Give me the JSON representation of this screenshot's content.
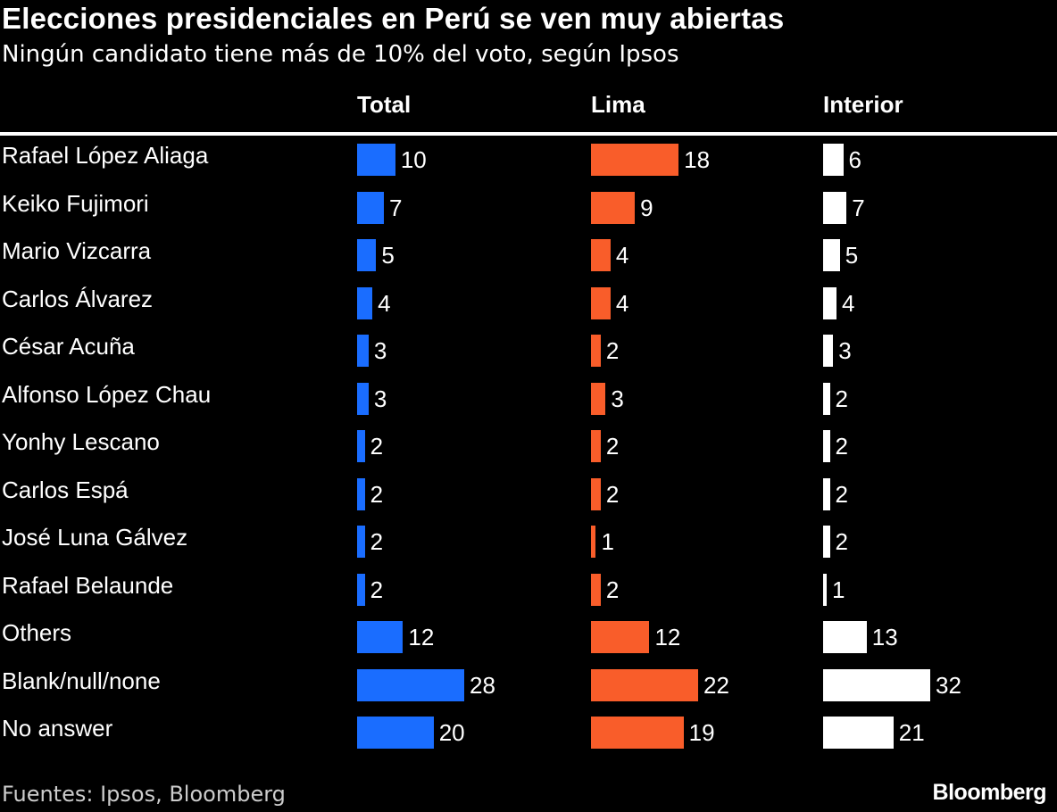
{
  "chart_data": {
    "type": "bar",
    "title": "Elecciones presidenciales en Perú se ven muy abiertas",
    "subtitle": "Ningún candidato tiene más de 10% del voto, según Ipsos",
    "categories": [
      "Rafael López Aliaga",
      "Keiko Fujimori",
      "Mario Vizcarra",
      "Carlos Álvarez",
      "César Acuña",
      "Alfonso López Chau",
      "Yonhy Lescano",
      "Carlos Espá",
      "José Luna Gálvez",
      "Rafael Belaunde",
      "Others",
      "Blank/null/none",
      "No answer"
    ],
    "series": [
      {
        "name": "Total",
        "color": "#1a6dff",
        "values": [
          10,
          7,
          5,
          4,
          3,
          3,
          2,
          2,
          2,
          2,
          12,
          28,
          20
        ]
      },
      {
        "name": "Lima",
        "color": "#f95d2a",
        "values": [
          18,
          9,
          4,
          4,
          2,
          3,
          2,
          2,
          1,
          2,
          12,
          22,
          19
        ]
      },
      {
        "name": "Interior",
        "color": "#ffffff",
        "values": [
          6,
          7,
          5,
          4,
          3,
          2,
          2,
          2,
          2,
          1,
          13,
          32,
          21
        ]
      }
    ],
    "orientation": "horizontal",
    "grid": false,
    "source": "Fuentes: Ipsos, Bloomberg",
    "logo": "Bloomberg"
  }
}
